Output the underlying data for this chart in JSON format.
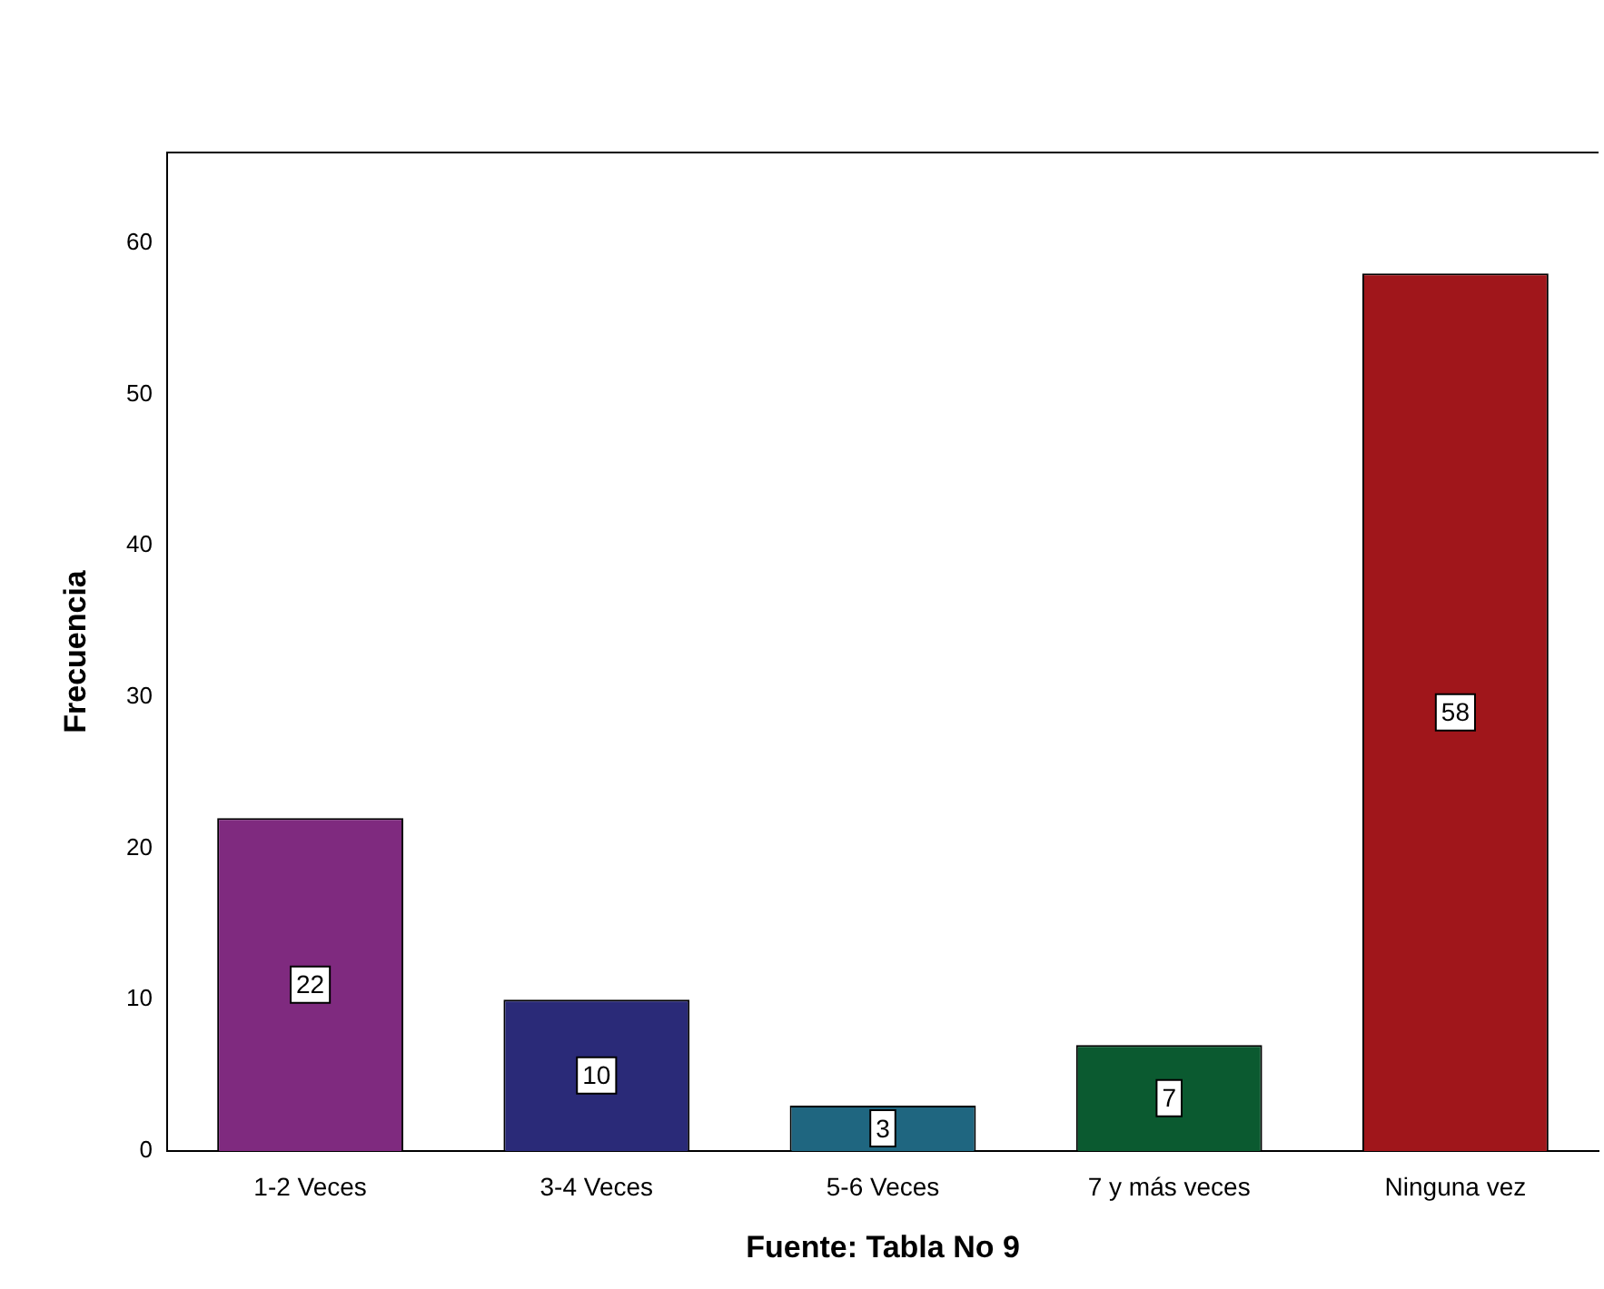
{
  "chart_data": {
    "type": "bar",
    "xlabel": "Fuente: Tabla No 9",
    "ylabel": "Frecuencia",
    "categories": [
      "1-2 Veces",
      "3-4 Veces",
      "5-6 Veces",
      "7 y más veces",
      "Ninguna vez"
    ],
    "values": [
      22,
      10,
      3,
      7,
      58
    ],
    "colors": [
      "#7f2a7f",
      "#2a2a78",
      "#1f6680",
      "#0b5a30",
      "#a0161b"
    ],
    "ylim": [
      0,
      66
    ],
    "yticks": [
      0,
      10,
      20,
      30,
      40,
      50,
      60
    ],
    "grid": false,
    "legend": false,
    "data_labels": true
  }
}
